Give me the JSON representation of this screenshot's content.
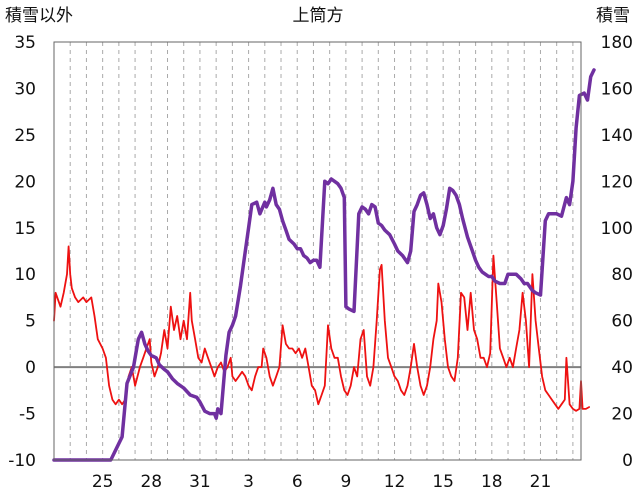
{
  "chart_data": {
    "type": "line",
    "title": "上筒方",
    "left_axis_label": "積雪以外",
    "right_axis_label": "積雪",
    "x_ticks": [
      "25",
      "28",
      "31",
      "3",
      "6",
      "9",
      "12",
      "15",
      "18",
      "21"
    ],
    "x_tick_days": [
      3,
      6,
      9,
      12,
      15,
      18,
      21,
      24,
      27,
      30
    ],
    "x_range": [
      0,
      32.5
    ],
    "y_left": {
      "min": -10,
      "max": 35,
      "ticks": [
        -10,
        -5,
        0,
        5,
        10,
        15,
        20,
        25,
        30,
        35
      ]
    },
    "y_right": {
      "min": 0,
      "max": 180,
      "ticks": [
        0,
        20,
        40,
        60,
        80,
        100,
        120,
        140,
        160,
        180
      ]
    },
    "grid": {
      "vertical": "dashed",
      "horizontal": "none",
      "zero_line": true
    },
    "colors": {
      "other": "#ee1111",
      "snow": "#7030a0",
      "zero": "#808080",
      "grid": "#aaaaaa"
    },
    "series": [
      {
        "axis": "left",
        "color": "#ee1111",
        "points": [
          [
            0.0,
            5
          ],
          [
            0.1,
            8
          ],
          [
            0.4,
            6.5
          ],
          [
            0.6,
            8
          ],
          [
            0.8,
            10
          ],
          [
            0.9,
            13
          ],
          [
            1.0,
            10
          ],
          [
            1.1,
            8.5
          ],
          [
            1.3,
            7.5
          ],
          [
            1.5,
            7
          ],
          [
            1.8,
            7.5
          ],
          [
            2.0,
            7
          ],
          [
            2.3,
            7.5
          ],
          [
            2.5,
            5.5
          ],
          [
            2.7,
            3
          ],
          [
            3.0,
            2
          ],
          [
            3.2,
            1
          ],
          [
            3.4,
            -2
          ],
          [
            3.6,
            -3.5
          ],
          [
            3.8,
            -4
          ],
          [
            4.0,
            -3.5
          ],
          [
            4.2,
            -4
          ],
          [
            4.4,
            -3.5
          ],
          [
            4.6,
            -1
          ],
          [
            4.8,
            0
          ],
          [
            5.0,
            -2
          ],
          [
            5.3,
            0
          ],
          [
            5.5,
            1
          ],
          [
            5.7,
            2
          ],
          [
            5.9,
            3
          ],
          [
            6.0,
            0.5
          ],
          [
            6.2,
            -1
          ],
          [
            6.4,
            0
          ],
          [
            6.6,
            1.5
          ],
          [
            6.8,
            4
          ],
          [
            7.0,
            2
          ],
          [
            7.2,
            6.5
          ],
          [
            7.4,
            4
          ],
          [
            7.6,
            5.5
          ],
          [
            7.8,
            3
          ],
          [
            8.0,
            5
          ],
          [
            8.2,
            3
          ],
          [
            8.4,
            8
          ],
          [
            8.5,
            5
          ],
          [
            8.7,
            3
          ],
          [
            8.9,
            1
          ],
          [
            9.1,
            0.5
          ],
          [
            9.3,
            2
          ],
          [
            9.5,
            1
          ],
          [
            9.7,
            0
          ],
          [
            9.9,
            -1
          ],
          [
            10.1,
            0
          ],
          [
            10.3,
            0.5
          ],
          [
            10.5,
            -0.5
          ],
          [
            10.7,
            0
          ],
          [
            10.9,
            1
          ],
          [
            11.0,
            -1
          ],
          [
            11.2,
            -1.5
          ],
          [
            11.4,
            -1
          ],
          [
            11.6,
            -0.5
          ],
          [
            11.8,
            -1
          ],
          [
            12.0,
            -2
          ],
          [
            12.2,
            -2.5
          ],
          [
            12.4,
            -1
          ],
          [
            12.6,
            0
          ],
          [
            12.8,
            0
          ],
          [
            12.9,
            2
          ],
          [
            13.1,
            1
          ],
          [
            13.3,
            -1
          ],
          [
            13.5,
            -2
          ],
          [
            13.7,
            -1
          ],
          [
            13.9,
            0
          ],
          [
            14.1,
            4.5
          ],
          [
            14.3,
            2.5
          ],
          [
            14.5,
            2
          ],
          [
            14.7,
            2
          ],
          [
            14.9,
            1.5
          ],
          [
            15.1,
            2
          ],
          [
            15.3,
            1
          ],
          [
            15.5,
            2
          ],
          [
            15.7,
            0
          ],
          [
            15.9,
            -2
          ],
          [
            16.1,
            -2.5
          ],
          [
            16.3,
            -4
          ],
          [
            16.5,
            -3
          ],
          [
            16.7,
            -2
          ],
          [
            16.9,
            4.5
          ],
          [
            17.1,
            2
          ],
          [
            17.3,
            1
          ],
          [
            17.5,
            1
          ],
          [
            17.7,
            -1
          ],
          [
            17.9,
            -2.5
          ],
          [
            18.1,
            -3
          ],
          [
            18.3,
            -2
          ],
          [
            18.5,
            0
          ],
          [
            18.7,
            -1
          ],
          [
            18.9,
            3
          ],
          [
            19.1,
            4
          ],
          [
            19.3,
            -1
          ],
          [
            19.5,
            -2
          ],
          [
            19.7,
            0
          ],
          [
            19.9,
            5
          ],
          [
            20.1,
            10.5
          ],
          [
            20.2,
            11
          ],
          [
            20.4,
            5
          ],
          [
            20.6,
            1
          ],
          [
            20.8,
            0
          ],
          [
            21.0,
            -1
          ],
          [
            21.2,
            -1.5
          ],
          [
            21.4,
            -2.5
          ],
          [
            21.6,
            -3
          ],
          [
            21.8,
            -2
          ],
          [
            22.0,
            0
          ],
          [
            22.2,
            2.5
          ],
          [
            22.4,
            0
          ],
          [
            22.6,
            -2
          ],
          [
            22.8,
            -3
          ],
          [
            23.0,
            -2
          ],
          [
            23.2,
            0
          ],
          [
            23.4,
            3
          ],
          [
            23.6,
            5
          ],
          [
            23.7,
            9
          ],
          [
            23.9,
            7
          ],
          [
            24.1,
            3
          ],
          [
            24.3,
            0
          ],
          [
            24.5,
            -1
          ],
          [
            24.7,
            -1.5
          ],
          [
            24.9,
            1
          ],
          [
            25.1,
            8
          ],
          [
            25.3,
            7.5
          ],
          [
            25.5,
            4
          ],
          [
            25.7,
            8
          ],
          [
            25.9,
            4
          ],
          [
            26.1,
            3
          ],
          [
            26.3,
            1
          ],
          [
            26.5,
            1
          ],
          [
            26.7,
            0
          ],
          [
            26.9,
            1.5
          ],
          [
            27.1,
            12
          ],
          [
            27.3,
            7
          ],
          [
            27.5,
            2
          ],
          [
            27.7,
            1
          ],
          [
            27.9,
            0
          ],
          [
            28.1,
            1
          ],
          [
            28.3,
            0
          ],
          [
            28.5,
            2
          ],
          [
            28.7,
            4
          ],
          [
            28.9,
            8
          ],
          [
            29.1,
            5
          ],
          [
            29.3,
            0
          ],
          [
            29.5,
            10
          ],
          [
            29.7,
            5
          ],
          [
            29.9,
            2
          ],
          [
            30.1,
            -1
          ],
          [
            30.3,
            -2.5
          ],
          [
            30.5,
            -3
          ],
          [
            30.7,
            -3.5
          ],
          [
            30.9,
            -4
          ],
          [
            31.1,
            -4.5
          ],
          [
            31.3,
            -4
          ],
          [
            31.5,
            -3.5
          ],
          [
            31.6,
            1
          ],
          [
            31.8,
            -4
          ],
          [
            32.0,
            -4.5
          ],
          [
            32.2,
            -4.7
          ],
          [
            32.4,
            -4.5
          ],
          [
            32.5,
            -1.5
          ],
          [
            32.6,
            -4.5
          ],
          [
            32.8,
            -4.5
          ],
          [
            33.0,
            -4.3
          ]
        ]
      },
      {
        "axis": "right",
        "color": "#7030a0",
        "points": [
          [
            0.0,
            0
          ],
          [
            2.5,
            0
          ],
          [
            3.5,
            0
          ],
          [
            4.2,
            10
          ],
          [
            4.5,
            33
          ],
          [
            4.9,
            40
          ],
          [
            5.2,
            52
          ],
          [
            5.4,
            55
          ],
          [
            5.6,
            50
          ],
          [
            5.8,
            47
          ],
          [
            6.0,
            45
          ],
          [
            6.3,
            44
          ],
          [
            6.5,
            41
          ],
          [
            6.8,
            39
          ],
          [
            7.0,
            38
          ],
          [
            7.3,
            35
          ],
          [
            7.6,
            33
          ],
          [
            8.0,
            31
          ],
          [
            8.4,
            28
          ],
          [
            8.8,
            27
          ],
          [
            9.0,
            25
          ],
          [
            9.3,
            21
          ],
          [
            9.6,
            20
          ],
          [
            9.9,
            20
          ],
          [
            10.0,
            18
          ],
          [
            10.1,
            22
          ],
          [
            10.3,
            20
          ],
          [
            10.6,
            45
          ],
          [
            10.8,
            55
          ],
          [
            11.0,
            58
          ],
          [
            11.2,
            62
          ],
          [
            11.5,
            75
          ],
          [
            11.7,
            85
          ],
          [
            12.0,
            100
          ],
          [
            12.2,
            110
          ],
          [
            12.5,
            111
          ],
          [
            12.7,
            106
          ],
          [
            13.0,
            111
          ],
          [
            13.1,
            109
          ],
          [
            13.3,
            112
          ],
          [
            13.5,
            117
          ],
          [
            13.7,
            110
          ],
          [
            13.9,
            108
          ],
          [
            14.1,
            103
          ],
          [
            14.3,
            99
          ],
          [
            14.5,
            95
          ],
          [
            14.8,
            93
          ],
          [
            15.0,
            91
          ],
          [
            15.2,
            91
          ],
          [
            15.4,
            88
          ],
          [
            15.6,
            87
          ],
          [
            15.8,
            85
          ],
          [
            16.0,
            86
          ],
          [
            16.2,
            86
          ],
          [
            16.4,
            83
          ],
          [
            16.7,
            120
          ],
          [
            16.9,
            119
          ],
          [
            17.1,
            121
          ],
          [
            17.3,
            120
          ],
          [
            17.5,
            119
          ],
          [
            17.7,
            117
          ],
          [
            17.9,
            113
          ],
          [
            18.0,
            66
          ],
          [
            18.2,
            65
          ],
          [
            18.5,
            64
          ],
          [
            18.8,
            106
          ],
          [
            19.0,
            109
          ],
          [
            19.2,
            108
          ],
          [
            19.4,
            106
          ],
          [
            19.6,
            110
          ],
          [
            19.8,
            109
          ],
          [
            20.0,
            102
          ],
          [
            20.2,
            101
          ],
          [
            20.4,
            99
          ],
          [
            20.7,
            97
          ],
          [
            21.0,
            93
          ],
          [
            21.2,
            90
          ],
          [
            21.5,
            88
          ],
          [
            21.8,
            85
          ],
          [
            22.0,
            90
          ],
          [
            22.2,
            107
          ],
          [
            22.4,
            110
          ],
          [
            22.6,
            114
          ],
          [
            22.8,
            115
          ],
          [
            23.0,
            110
          ],
          [
            23.2,
            104
          ],
          [
            23.4,
            106
          ],
          [
            23.6,
            100
          ],
          [
            23.8,
            97
          ],
          [
            24.0,
            101
          ],
          [
            24.2,
            108
          ],
          [
            24.4,
            117
          ],
          [
            24.6,
            116
          ],
          [
            24.8,
            114
          ],
          [
            25.0,
            110
          ],
          [
            25.2,
            104
          ],
          [
            25.5,
            96
          ],
          [
            25.8,
            90
          ],
          [
            26.0,
            86
          ],
          [
            26.2,
            83
          ],
          [
            26.4,
            81
          ],
          [
            26.6,
            80
          ],
          [
            26.8,
            79
          ],
          [
            27.0,
            79
          ],
          [
            27.2,
            77
          ],
          [
            27.5,
            76
          ],
          [
            27.8,
            76
          ],
          [
            28.0,
            80
          ],
          [
            28.2,
            80
          ],
          [
            28.5,
            80
          ],
          [
            28.8,
            78
          ],
          [
            29.0,
            76
          ],
          [
            29.2,
            76
          ],
          [
            29.5,
            73
          ],
          [
            29.7,
            72
          ],
          [
            30.0,
            71
          ],
          [
            30.3,
            103
          ],
          [
            30.5,
            106
          ],
          [
            30.8,
            106
          ],
          [
            31.0,
            106
          ],
          [
            31.3,
            105
          ],
          [
            31.6,
            113
          ],
          [
            31.8,
            110
          ],
          [
            32.0,
            120
          ],
          [
            32.2,
            143
          ],
          [
            32.4,
            157
          ],
          [
            32.7,
            158
          ],
          [
            32.9,
            155
          ],
          [
            33.1,
            165
          ],
          [
            33.3,
            168
          ]
        ]
      }
    ]
  }
}
